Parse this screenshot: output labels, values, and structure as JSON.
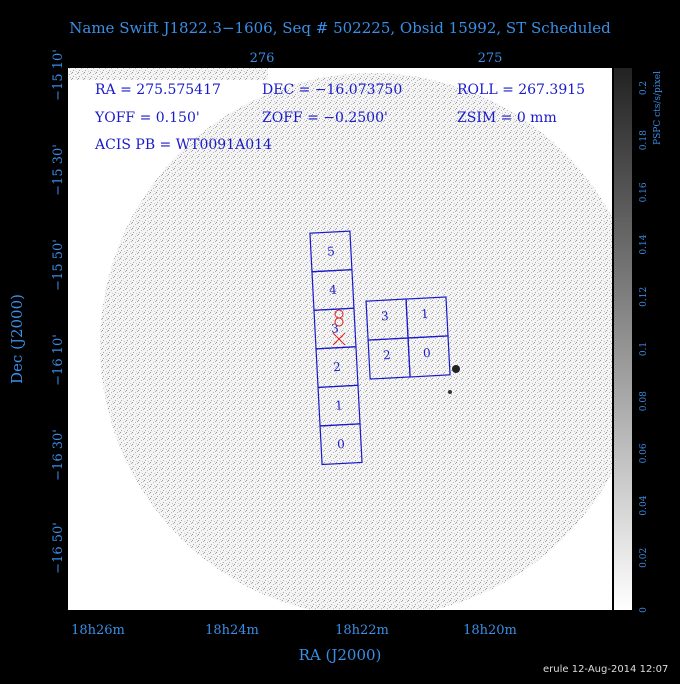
{
  "title": "Name Swift J1822.3−1606, Seq # 502225, Obsid 15992, ST Scheduled",
  "info": [
    "RA = 275.575417",
    "DEC = −16.073750",
    "ROLL = 267.3915",
    "YOFF =   0.150'",
    "ZOFF = −0.2500'",
    "ZSIM = 0 mm",
    "ACIS PB = WT0091A014"
  ],
  "axes": {
    "top_ticks": [
      "276",
      "275"
    ],
    "left_ticks": [
      "−15 10'",
      "−15 30'",
      "−15 50'",
      "−16 10'",
      "−16 30'",
      "−16 50'"
    ],
    "bottom_ticks": [
      "18h26m",
      "18h24m",
      "18h22m",
      "18h20m"
    ],
    "x_label": "RA (J2000)",
    "y_label": "Dec (J2000)"
  },
  "colorbar": {
    "ticks": [
      "0",
      "0.02",
      "0.04",
      "0.06",
      "0.08",
      "0.1",
      "0.12",
      "0.14",
      "0.16",
      "0.18",
      "0.2"
    ],
    "label": "PSPC cts/s/pixel"
  },
  "chips": {
    "left": [
      "5",
      "4",
      "3",
      "2",
      "1",
      "0"
    ],
    "right": [
      "3",
      "1",
      "2",
      "0"
    ]
  },
  "footer": "erule 12-Aug-2014 12:07"
}
